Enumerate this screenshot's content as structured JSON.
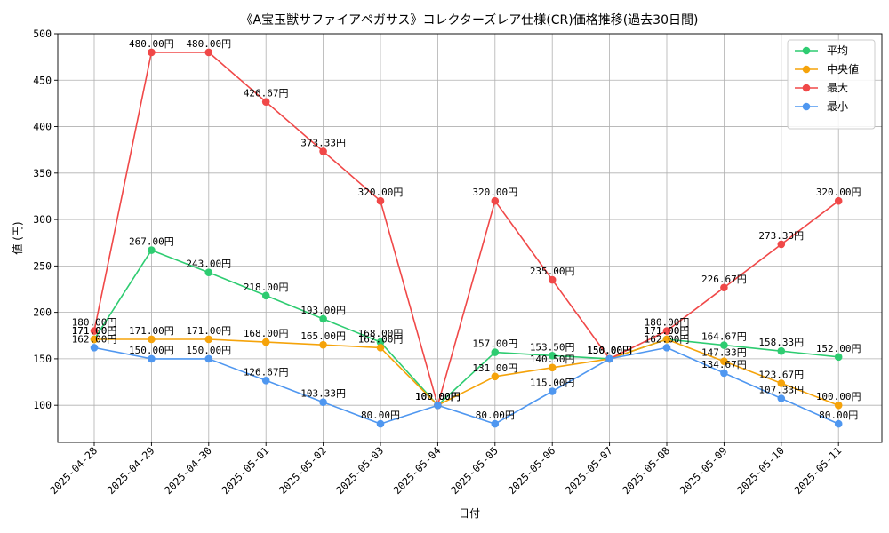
{
  "chart_data": {
    "type": "line",
    "title": "《A宝玉獣サファイアペガサス》コレクターズレア仕様(CR)価格推移(過去30日間)",
    "xlabel": "日付",
    "ylabel": "値 (円)",
    "ylim": [
      60,
      500
    ],
    "yticks": [
      100,
      150,
      200,
      250,
      300,
      350,
      400,
      450,
      500
    ],
    "grid": true,
    "legend_position": "top-right",
    "categories": [
      "2025-04-28",
      "2025-04-29",
      "2025-04-30",
      "2025-05-01",
      "2025-05-02",
      "2025-05-03",
      "2025-05-04",
      "2025-05-05",
      "2025-05-06",
      "2025-05-07",
      "2025-05-08",
      "2025-05-09",
      "2025-05-10",
      "2025-05-11"
    ],
    "series": [
      {
        "name": "平均",
        "color": "#2ecc71",
        "values": [
          171.0,
          267.0,
          243.0,
          218.0,
          193.0,
          168.0,
          100.0,
          157.0,
          153.5,
          150.0,
          171.0,
          164.67,
          158.33,
          152.0
        ],
        "labels": [
          "171.00円",
          "267.00円",
          "243.00円",
          "218.00円",
          "193.00円",
          "168.00円",
          "100.00円",
          "157.00円",
          "153.50円",
          "150.00円",
          "171.00円",
          "164.67円",
          "158.33円",
          "152.00円"
        ]
      },
      {
        "name": "中央値",
        "color": "#f5a30a",
        "values": [
          171.0,
          171.0,
          171.0,
          168.0,
          165.0,
          162.0,
          100.0,
          131.0,
          140.5,
          150.0,
          171.0,
          147.33,
          123.67,
          100.0
        ],
        "labels": [
          "171.00円",
          "171.00円",
          "171.00円",
          "168.00円",
          "165.00円",
          "162.00円",
          "100.00円",
          "131.00円",
          "140.50円",
          "150.00円",
          "171.00円",
          "147.33円",
          "123.67円",
          "100.00円"
        ]
      },
      {
        "name": "最大",
        "color": "#f04848",
        "values": [
          180.0,
          480.0,
          480.0,
          426.67,
          373.33,
          320.0,
          100.0,
          320.0,
          235.0,
          150.0,
          180.0,
          226.67,
          273.33,
          320.0
        ],
        "labels": [
          "180.00円",
          "480.00円",
          "480.00円",
          "426.67円",
          "373.33円",
          "320.00円",
          "100.00円",
          "320.00円",
          "235.00円",
          "150.00円",
          "180.00円",
          "226.67円",
          "273.33円",
          "320.00円"
        ]
      },
      {
        "name": "最小",
        "color": "#4f97f0",
        "values": [
          162.0,
          150.0,
          150.0,
          126.67,
          103.33,
          80.0,
          100.0,
          80.0,
          115.0,
          150.0,
          162.0,
          134.67,
          107.33,
          80.0
        ],
        "labels": [
          "162.00円",
          "150.00円",
          "150.00円",
          "126.67円",
          "103.33円",
          "80.00円",
          "100.00円",
          "80.00円",
          "115.00円",
          "150.00円",
          "162.00円",
          "134.67円",
          "107.33円",
          "80.00円"
        ]
      }
    ]
  }
}
